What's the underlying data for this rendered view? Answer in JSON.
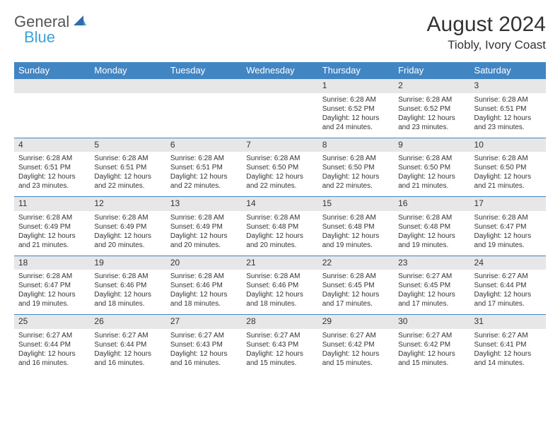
{
  "logo": {
    "text1": "General",
    "text2": "Blue"
  },
  "title": "August 2024",
  "location": "Tiobly, Ivory Coast",
  "colors": {
    "header_bg": "#4285c3",
    "header_text": "#ffffff",
    "daynum_bg": "#e7e7e7",
    "border": "#4285c3",
    "logo_accent": "#3da2db",
    "text": "#333333"
  },
  "weekdays": [
    "Sunday",
    "Monday",
    "Tuesday",
    "Wednesday",
    "Thursday",
    "Friday",
    "Saturday"
  ],
  "weeks": [
    {
      "nums": [
        "",
        "",
        "",
        "",
        "1",
        "2",
        "3"
      ],
      "cells": [
        null,
        null,
        null,
        null,
        {
          "sunrise": "6:28 AM",
          "sunset": "6:52 PM",
          "dl": "12 hours and 24 minutes."
        },
        {
          "sunrise": "6:28 AM",
          "sunset": "6:52 PM",
          "dl": "12 hours and 23 minutes."
        },
        {
          "sunrise": "6:28 AM",
          "sunset": "6:51 PM",
          "dl": "12 hours and 23 minutes."
        }
      ]
    },
    {
      "nums": [
        "4",
        "5",
        "6",
        "7",
        "8",
        "9",
        "10"
      ],
      "cells": [
        {
          "sunrise": "6:28 AM",
          "sunset": "6:51 PM",
          "dl": "12 hours and 23 minutes."
        },
        {
          "sunrise": "6:28 AM",
          "sunset": "6:51 PM",
          "dl": "12 hours and 22 minutes."
        },
        {
          "sunrise": "6:28 AM",
          "sunset": "6:51 PM",
          "dl": "12 hours and 22 minutes."
        },
        {
          "sunrise": "6:28 AM",
          "sunset": "6:50 PM",
          "dl": "12 hours and 22 minutes."
        },
        {
          "sunrise": "6:28 AM",
          "sunset": "6:50 PM",
          "dl": "12 hours and 22 minutes."
        },
        {
          "sunrise": "6:28 AM",
          "sunset": "6:50 PM",
          "dl": "12 hours and 21 minutes."
        },
        {
          "sunrise": "6:28 AM",
          "sunset": "6:50 PM",
          "dl": "12 hours and 21 minutes."
        }
      ]
    },
    {
      "nums": [
        "11",
        "12",
        "13",
        "14",
        "15",
        "16",
        "17"
      ],
      "cells": [
        {
          "sunrise": "6:28 AM",
          "sunset": "6:49 PM",
          "dl": "12 hours and 21 minutes."
        },
        {
          "sunrise": "6:28 AM",
          "sunset": "6:49 PM",
          "dl": "12 hours and 20 minutes."
        },
        {
          "sunrise": "6:28 AM",
          "sunset": "6:49 PM",
          "dl": "12 hours and 20 minutes."
        },
        {
          "sunrise": "6:28 AM",
          "sunset": "6:48 PM",
          "dl": "12 hours and 20 minutes."
        },
        {
          "sunrise": "6:28 AM",
          "sunset": "6:48 PM",
          "dl": "12 hours and 19 minutes."
        },
        {
          "sunrise": "6:28 AM",
          "sunset": "6:48 PM",
          "dl": "12 hours and 19 minutes."
        },
        {
          "sunrise": "6:28 AM",
          "sunset": "6:47 PM",
          "dl": "12 hours and 19 minutes."
        }
      ]
    },
    {
      "nums": [
        "18",
        "19",
        "20",
        "21",
        "22",
        "23",
        "24"
      ],
      "cells": [
        {
          "sunrise": "6:28 AM",
          "sunset": "6:47 PM",
          "dl": "12 hours and 19 minutes."
        },
        {
          "sunrise": "6:28 AM",
          "sunset": "6:46 PM",
          "dl": "12 hours and 18 minutes."
        },
        {
          "sunrise": "6:28 AM",
          "sunset": "6:46 PM",
          "dl": "12 hours and 18 minutes."
        },
        {
          "sunrise": "6:28 AM",
          "sunset": "6:46 PM",
          "dl": "12 hours and 18 minutes."
        },
        {
          "sunrise": "6:28 AM",
          "sunset": "6:45 PM",
          "dl": "12 hours and 17 minutes."
        },
        {
          "sunrise": "6:27 AM",
          "sunset": "6:45 PM",
          "dl": "12 hours and 17 minutes."
        },
        {
          "sunrise": "6:27 AM",
          "sunset": "6:44 PM",
          "dl": "12 hours and 17 minutes."
        }
      ]
    },
    {
      "nums": [
        "25",
        "26",
        "27",
        "28",
        "29",
        "30",
        "31"
      ],
      "cells": [
        {
          "sunrise": "6:27 AM",
          "sunset": "6:44 PM",
          "dl": "12 hours and 16 minutes."
        },
        {
          "sunrise": "6:27 AM",
          "sunset": "6:44 PM",
          "dl": "12 hours and 16 minutes."
        },
        {
          "sunrise": "6:27 AM",
          "sunset": "6:43 PM",
          "dl": "12 hours and 16 minutes."
        },
        {
          "sunrise": "6:27 AM",
          "sunset": "6:43 PM",
          "dl": "12 hours and 15 minutes."
        },
        {
          "sunrise": "6:27 AM",
          "sunset": "6:42 PM",
          "dl": "12 hours and 15 minutes."
        },
        {
          "sunrise": "6:27 AM",
          "sunset": "6:42 PM",
          "dl": "12 hours and 15 minutes."
        },
        {
          "sunrise": "6:27 AM",
          "sunset": "6:41 PM",
          "dl": "12 hours and 14 minutes."
        }
      ]
    }
  ],
  "labels": {
    "sunrise": "Sunrise:",
    "sunset": "Sunset:",
    "daylight": "Daylight:"
  }
}
